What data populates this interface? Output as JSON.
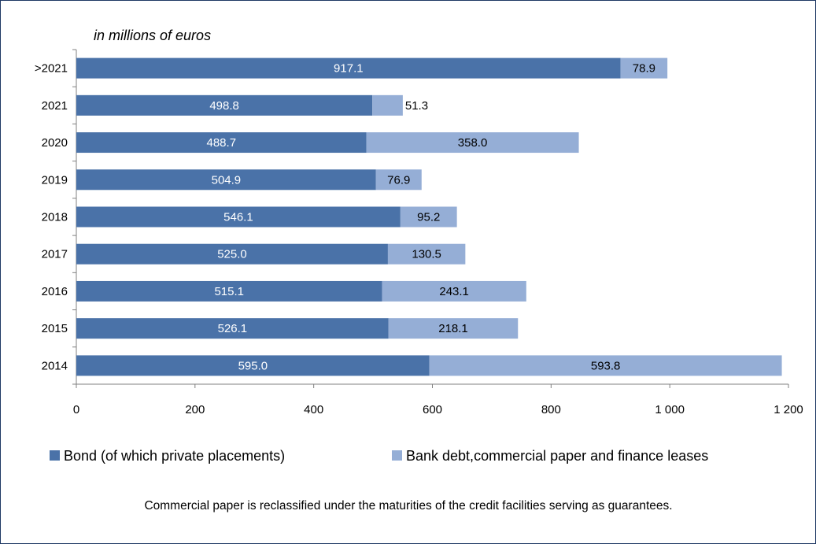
{
  "chart_data": {
    "type": "bar",
    "orientation": "horizontal",
    "stacked": true,
    "unit_label": "in millions of euros",
    "categories": [
      ">2021",
      "2021",
      "2020",
      "2019",
      "2018",
      "2017",
      "2016",
      "2015",
      "2014"
    ],
    "series": [
      {
        "name": "Bond (of which private placements)",
        "color": "#4a72a8",
        "values": [
          917.1,
          498.8,
          488.7,
          504.9,
          546.1,
          525.0,
          515.1,
          526.1,
          595.0
        ],
        "labels": [
          "917.1",
          "498.8",
          "488.7",
          "504.9",
          "546.1",
          "525.0",
          "515.1",
          "526.1",
          "595.0"
        ]
      },
      {
        "name": "Bank debt,commercial paper and finance leases",
        "color": "#95aed6",
        "values": [
          78.9,
          51.3,
          358.0,
          76.9,
          95.2,
          130.5,
          243.1,
          218.1,
          593.8
        ],
        "labels": [
          "78.9",
          "51.3",
          "358.0",
          "76.9",
          "95.2",
          "130.5",
          "243.1",
          "218.1",
          "593.8"
        ]
      }
    ],
    "xlim": [
      0,
      1200
    ],
    "x_ticks": [
      0,
      200,
      400,
      600,
      800,
      1000,
      1200
    ],
    "x_tick_labels": [
      "0",
      "200",
      "400",
      "600",
      "800",
      "1 000",
      "1 200"
    ],
    "grid": false,
    "legend_position": "bottom"
  },
  "note": "Commercial paper is reclassified under the maturities of the credit facilities serving as guarantees."
}
